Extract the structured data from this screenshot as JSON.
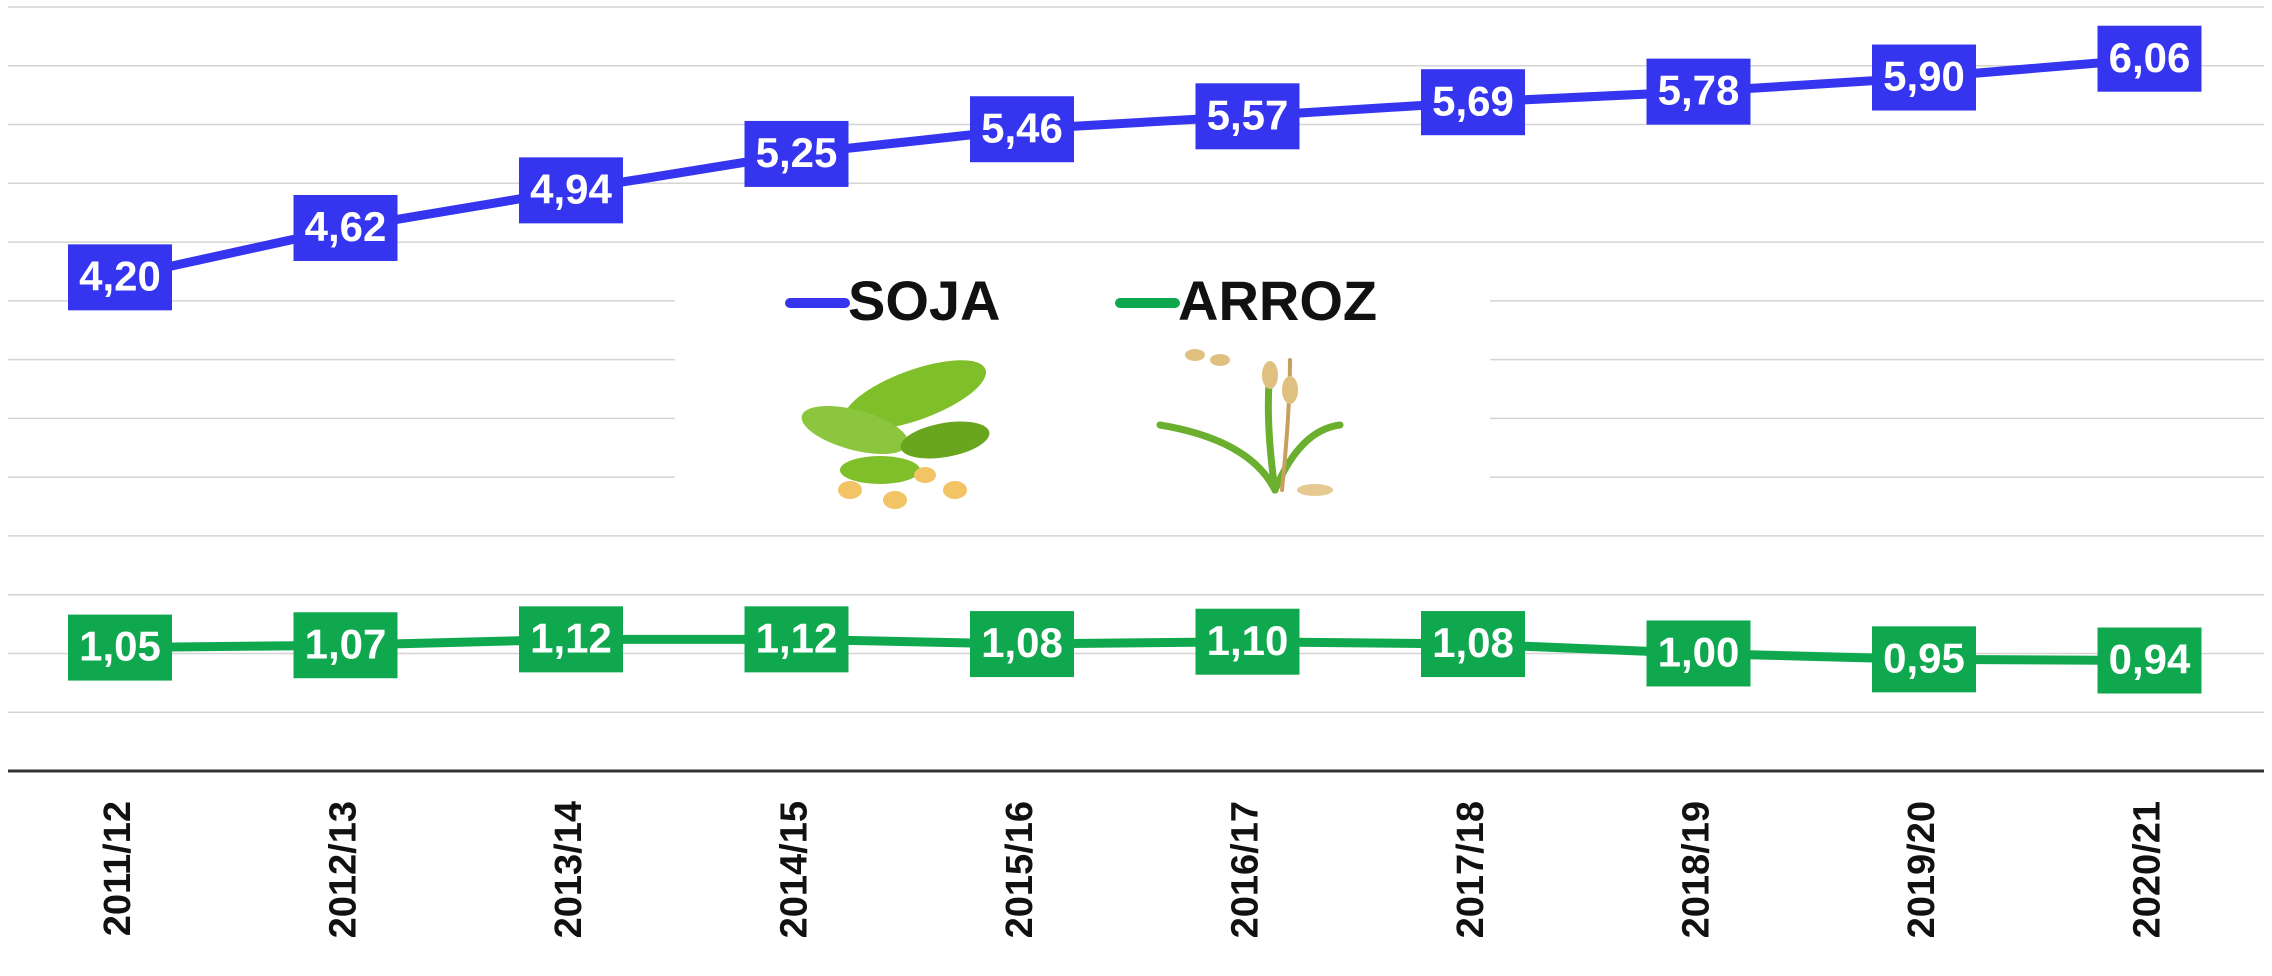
{
  "chart_data": {
    "type": "line",
    "categories": [
      "2011/12",
      "2012/13",
      "2013/14",
      "2014/15",
      "2015/16",
      "2016/17",
      "2017/18",
      "2018/19",
      "2019/20",
      "2020/21"
    ],
    "series": [
      {
        "name": "SOJA",
        "color": "#3535f0",
        "values": [
          4.2,
          4.62,
          4.94,
          5.25,
          5.46,
          5.57,
          5.69,
          5.78,
          5.9,
          6.06
        ],
        "value_labels": [
          "4,20",
          "4,62",
          "4,94",
          "5,25",
          "5,46",
          "5,57",
          "5,69",
          "5,78",
          "5,90",
          "6,06"
        ]
      },
      {
        "name": "ARROZ",
        "color": "#10a84f",
        "values": [
          1.05,
          1.07,
          1.12,
          1.12,
          1.08,
          1.1,
          1.08,
          1.0,
          0.95,
          0.94
        ],
        "value_labels": [
          "1,05",
          "1,07",
          "1,12",
          "1,12",
          "1,08",
          "1,10",
          "1,08",
          "1,00",
          "0,95",
          "0,94"
        ]
      }
    ],
    "ylim": [
      0,
      6.5
    ],
    "yticks": [
      0,
      0.5,
      1,
      1.5,
      2,
      2.5,
      3,
      3.5,
      4,
      4.5,
      5,
      5.5,
      6,
      6.5
    ],
    "grid": true
  }
}
